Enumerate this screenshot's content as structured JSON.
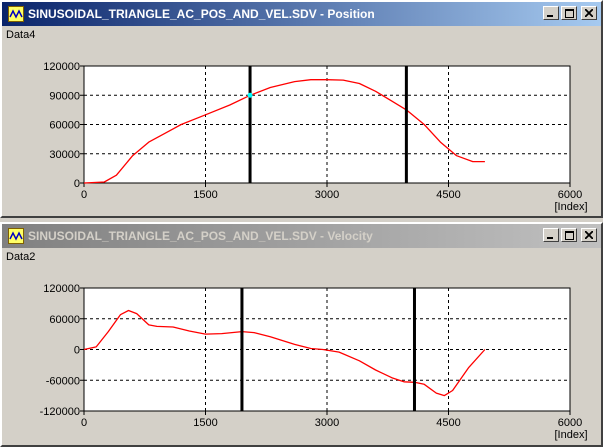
{
  "windows": [
    {
      "title": "SINUSOIDAL_TRIANGLE_AC_POS_AND_VEL.SDV - Position",
      "active": true,
      "buttons": {
        "minimize": "minimize",
        "maximize": "maximize",
        "close": "close"
      }
    },
    {
      "title": "SINUSOIDAL_TRIANGLE_AC_POS_AND_VEL.SDV - Velocity",
      "active": false,
      "buttons": {
        "minimize": "minimize",
        "maximize": "maximize",
        "close": "close"
      }
    }
  ],
  "colors": {
    "plot_bg": "#ffffff",
    "curve": "#ff0000",
    "cursor": "#000000",
    "grid": "#000000",
    "marker": "#00ffff"
  },
  "chart_data": [
    {
      "type": "line",
      "series_label": "Data4",
      "xunit": "[Index]",
      "xlim": [
        0,
        6000
      ],
      "ylim": [
        0,
        120000
      ],
      "xticks": [
        "0",
        "1500",
        "3000",
        "4500",
        "6000"
      ],
      "yticks": [
        "0",
        "30000",
        "60000",
        "90000",
        "120000"
      ],
      "cursors": [
        2050,
        3980
      ],
      "marker": {
        "x": 2050,
        "y": 90000
      },
      "grid": true,
      "series": [
        {
          "x": [
            0,
            250,
            400,
            600,
            800,
            1000,
            1200,
            1500,
            1800,
            2050,
            2300,
            2600,
            2800,
            3000,
            3200,
            3400,
            3600,
            3800,
            3980,
            4200,
            4400,
            4600,
            4800,
            4950
          ],
          "y": [
            0,
            1000,
            8000,
            28000,
            42000,
            51000,
            60000,
            70000,
            80000,
            90000,
            98000,
            104000,
            106000,
            106000,
            105500,
            102000,
            94000,
            84000,
            75000,
            60000,
            42000,
            28000,
            22000,
            22000
          ]
        }
      ]
    },
    {
      "type": "line",
      "series_label": "Data2",
      "xunit": "[Index]",
      "xlim": [
        0,
        6000
      ],
      "ylim": [
        -120000,
        120000
      ],
      "xticks": [
        "0",
        "1500",
        "3000",
        "4500",
        "6000"
      ],
      "yticks": [
        "-120000",
        "-60000",
        "0",
        "60000",
        "120000"
      ],
      "cursors": [
        1950,
        4080
      ],
      "grid": true,
      "series": [
        {
          "x": [
            0,
            150,
            300,
            450,
            550,
            650,
            800,
            900,
            1100,
            1300,
            1500,
            1700,
            1950,
            2100,
            2300,
            2600,
            2800,
            2950,
            3150,
            3400,
            3600,
            3800,
            3950,
            4080,
            4200,
            4350,
            4450,
            4550,
            4750,
            4950
          ],
          "y": [
            0,
            5000,
            35000,
            68000,
            76000,
            70000,
            48000,
            45000,
            44000,
            36000,
            30000,
            31000,
            35000,
            33000,
            25000,
            10000,
            2000,
            0,
            -5000,
            -22000,
            -40000,
            -55000,
            -63000,
            -64000,
            -68000,
            -85000,
            -90000,
            -80000,
            -35000,
            0
          ]
        }
      ]
    }
  ]
}
